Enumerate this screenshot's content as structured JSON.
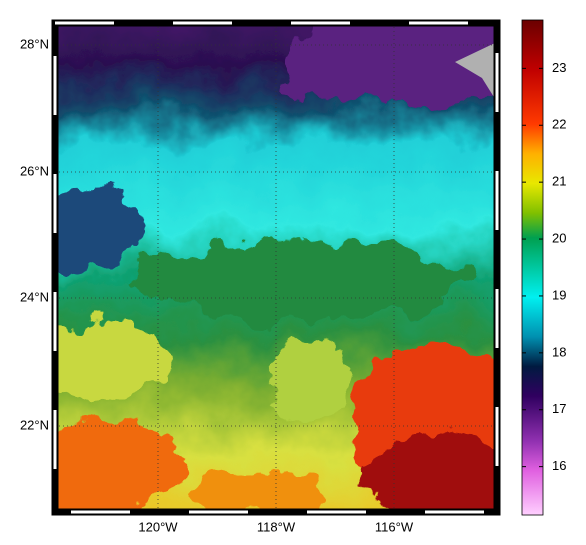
{
  "map": {
    "latitude_labels": [
      "28°N",
      "26°N",
      "24°N",
      "22°N"
    ],
    "longitude_labels": [
      "120°W",
      "118°W",
      "116°W"
    ],
    "colorbar": {
      "range": [
        15.15,
        23.85
      ],
      "ticks": [
        16,
        17,
        18,
        19,
        20,
        21,
        22,
        23
      ]
    }
  }
}
